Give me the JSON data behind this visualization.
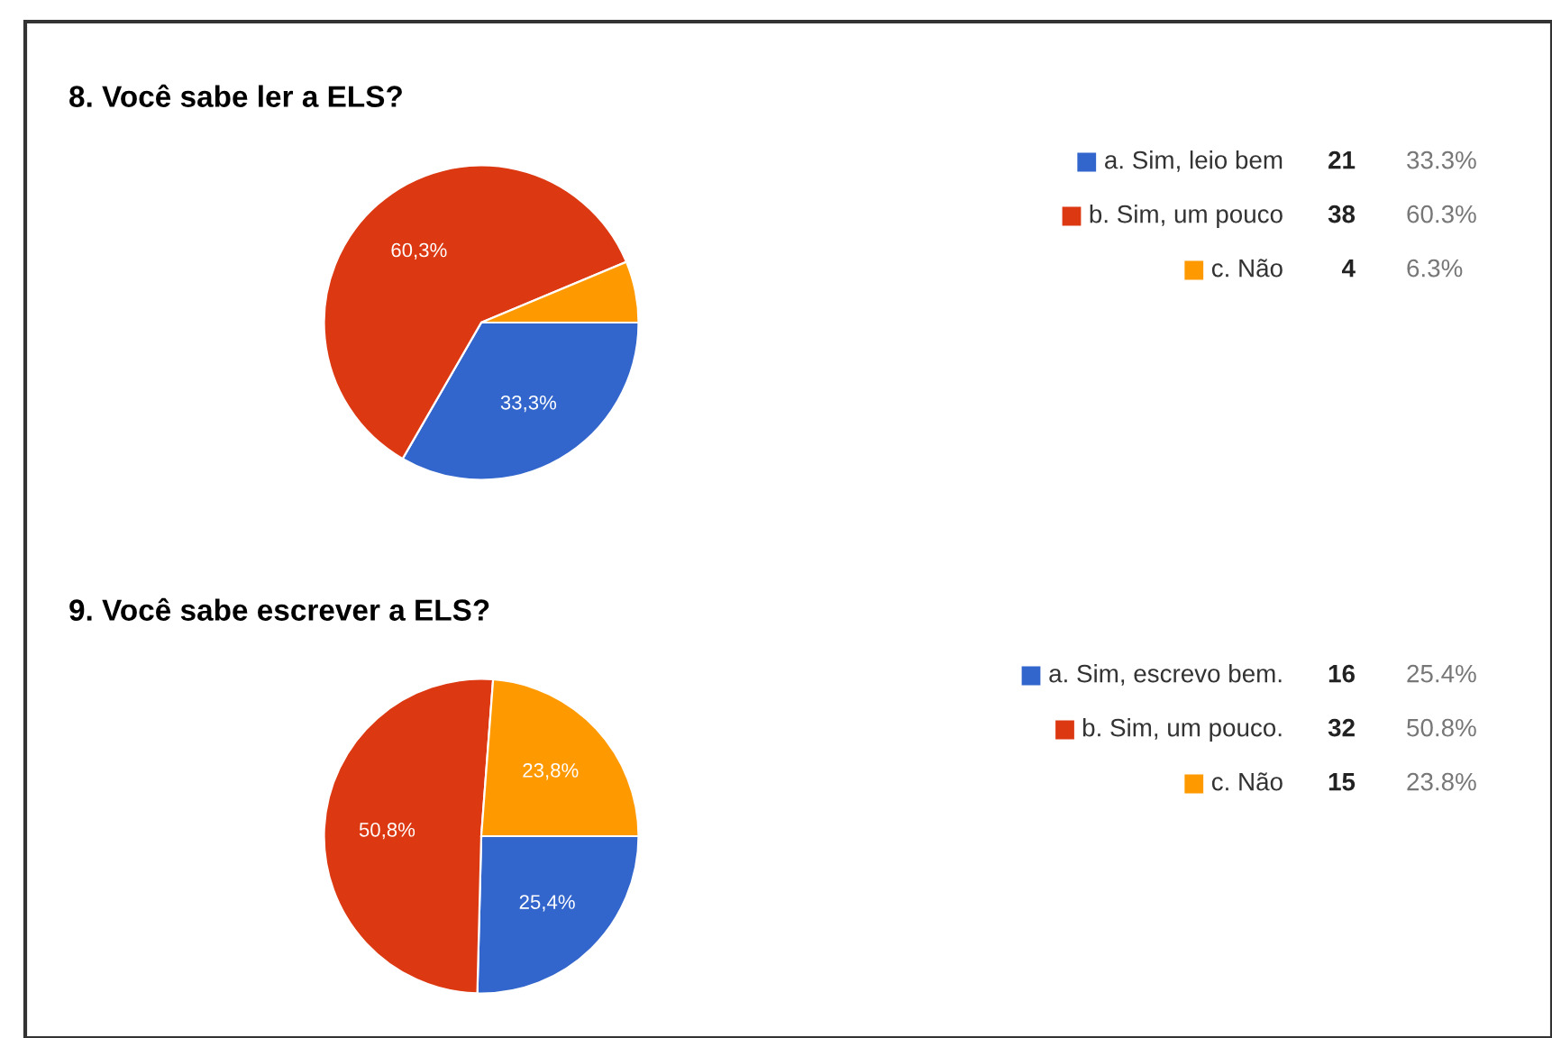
{
  "chart_data": [
    {
      "type": "pie",
      "title": "8. Você sabe ler a ELS?",
      "categories": [
        "a. Sim, leio bem",
        "b. Sim, um pouco",
        "c. Não"
      ],
      "values": [
        33.3,
        60.3,
        6.3
      ],
      "colors": [
        "#3366cc",
        "#dc3912",
        "#ff9900"
      ],
      "value_labels": [
        "33,3%",
        "60,3%",
        null
      ],
      "legend": "right",
      "annotations": [
        "21",
        "38",
        "4",
        "33.3%",
        "60.3%",
        "6.3%"
      ]
    },
    {
      "type": "pie",
      "title": "9. Você sabe escrever a ELS?",
      "categories": [
        "a. Sim, escrevo bem.",
        "b. Sim, um pouco.",
        "c. Não"
      ],
      "values": [
        25.4,
        50.8,
        23.8
      ],
      "colors": [
        "#3366cc",
        "#dc3912",
        "#ff9900"
      ],
      "value_labels": [
        "25,4%",
        "50,8%",
        "23,8%"
      ],
      "legend": "right",
      "annotations": [
        "16",
        "32",
        "15",
        "25.4%",
        "50.8%",
        "23.8%"
      ]
    }
  ]
}
